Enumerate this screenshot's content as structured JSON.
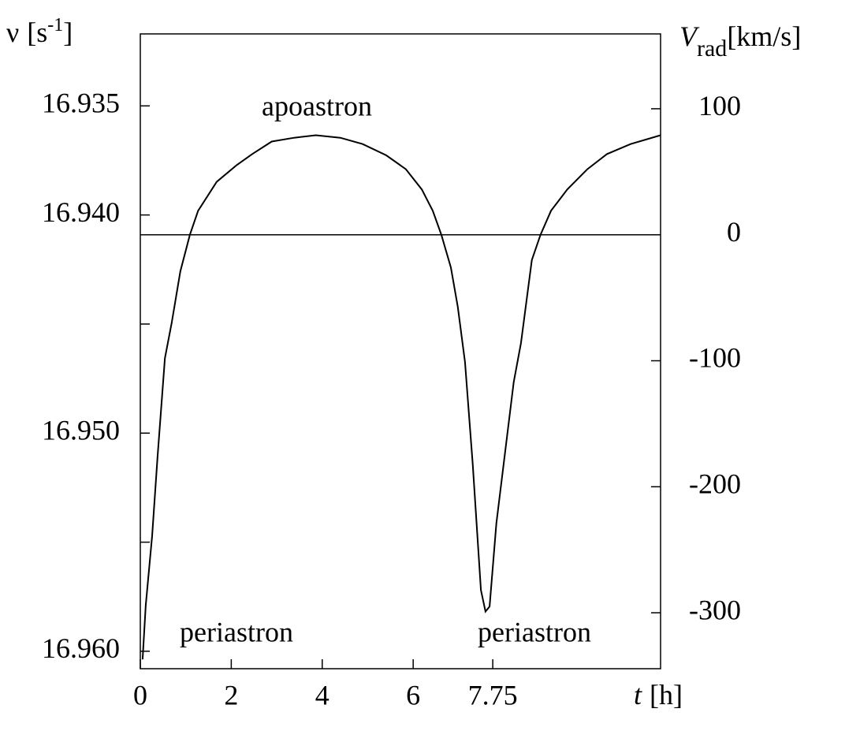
{
  "chart_data": {
    "type": "line",
    "ylabel": {
      "symbol": "ν",
      "unit": "[s",
      "superscript": "-1",
      "close": "]"
    },
    "y2label": {
      "symbol": "V",
      "subscript": "rad",
      "unit": "[km/s]"
    },
    "xlabel": {
      "symbol": "t",
      "unit": "[h]"
    },
    "x": [
      0.05,
      0.12,
      0.26,
      0.38,
      0.54,
      0.69,
      0.88,
      1.09,
      1.27,
      1.68,
      2.11,
      2.46,
      2.89,
      3.38,
      3.86,
      4.4,
      4.89,
      5.41,
      5.84,
      6.19,
      6.43,
      6.62,
      6.83,
      6.98,
      7.14,
      7.31,
      7.49,
      7.59,
      7.68,
      7.83,
      8.21,
      8.37,
      8.61,
      8.8,
      9.03,
      9.39,
      9.83,
      10.26,
      10.78,
      11.44
    ],
    "series": [
      {
        "name": "V_rad",
        "color": "#000000",
        "axis": "y2",
        "values": [
          -337,
          -294,
          -239,
          -176,
          -98,
          -70,
          -29,
          0,
          19,
          42,
          55,
          64,
          74,
          77,
          79,
          77,
          72,
          63,
          52,
          36,
          19,
          0,
          -26,
          -57,
          -101,
          -182,
          -282,
          -299,
          -295,
          -229,
          -117,
          -86,
          -20,
          0,
          19,
          36,
          52,
          64,
          72,
          79
        ]
      }
    ],
    "reference_line": {
      "value": 0,
      "axis": "y2"
    },
    "xlim": [
      0,
      11.44
    ],
    "xticks": [
      0,
      2,
      4,
      6,
      7.75
    ],
    "ylim": [
      16.9608,
      16.9317
    ],
    "yticks": [
      16.935,
      {
        "value": 16.94,
        "label": "16.940"
      },
      {
        "value": 16.95,
        "label": "16.950"
      },
      {
        "value": 16.96,
        "label": "16.960"
      }
    ],
    "yminorticks": [
      16.945,
      16.955
    ],
    "y2lim": [
      -344.4,
      159.4
    ],
    "y2ticks": [
      100,
      0,
      -100,
      -200,
      -300
    ],
    "annotations": [
      "apoastron",
      "periastron",
      "periastron"
    ]
  }
}
